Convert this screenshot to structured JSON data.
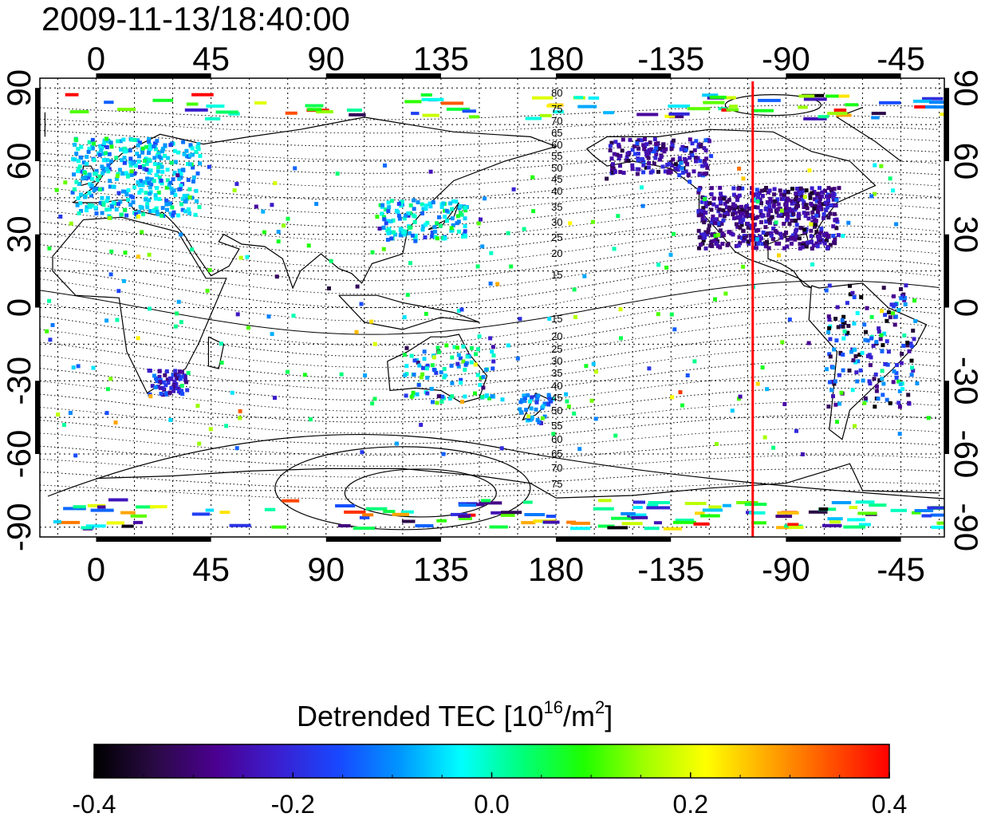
{
  "title": "2009-11-13/18:40:00",
  "map": {
    "top_lon_ticks": [
      "0",
      "45",
      "90",
      "135",
      "180",
      "-135",
      "-90",
      "-45"
    ],
    "bottom_lon_ticks": [
      "0",
      "45",
      "90",
      "135",
      "180",
      "-135",
      "-90",
      "-45"
    ],
    "left_lat_ticks": [
      "90",
      "60",
      "30",
      "0",
      "-30",
      "-60",
      "-90"
    ],
    "right_lat_ticks": [
      "90",
      "60",
      "30",
      "0",
      "-30",
      "-60",
      "-90"
    ],
    "lon_tick_values": [
      0,
      45,
      90,
      135,
      180,
      -135,
      -90,
      -45
    ],
    "lat_tick_values": [
      90,
      60,
      30,
      0,
      -30,
      -60,
      -90
    ],
    "lon_range": [
      -22,
      332
    ],
    "lat_range": [
      -94,
      94
    ],
    "grid": true,
    "marker_longitude": -103,
    "marker_color": "#ff0000",
    "contour_labels_north": [
      "80",
      "75",
      "70",
      "65",
      "60",
      "55",
      "50",
      "45",
      "40",
      "35",
      "30",
      "25",
      "20",
      "15"
    ],
    "contour_labels_south": [
      "15",
      "20",
      "25",
      "30",
      "35",
      "40",
      "45",
      "50",
      "55",
      "60",
      "65",
      "70",
      "75"
    ]
  },
  "colorbar": {
    "label_main": "Detrended TEC  [10",
    "label_exp": "16",
    "label_mid": "/m",
    "label_exp2": "2",
    "label_end": "]",
    "ticks": [
      "-0.4",
      "-0.2",
      "0.0",
      "0.2",
      "0.4"
    ],
    "min": -0.4,
    "max": 0.4,
    "colors": [
      "#000000",
      "#2a0a45",
      "#4b0091",
      "#3a1fd0",
      "#1848ff",
      "#0096ff",
      "#00ffff",
      "#00ff7a",
      "#1eff00",
      "#a0ff00",
      "#ffff00",
      "#ffaa00",
      "#ff5500",
      "#ff0000"
    ]
  }
}
